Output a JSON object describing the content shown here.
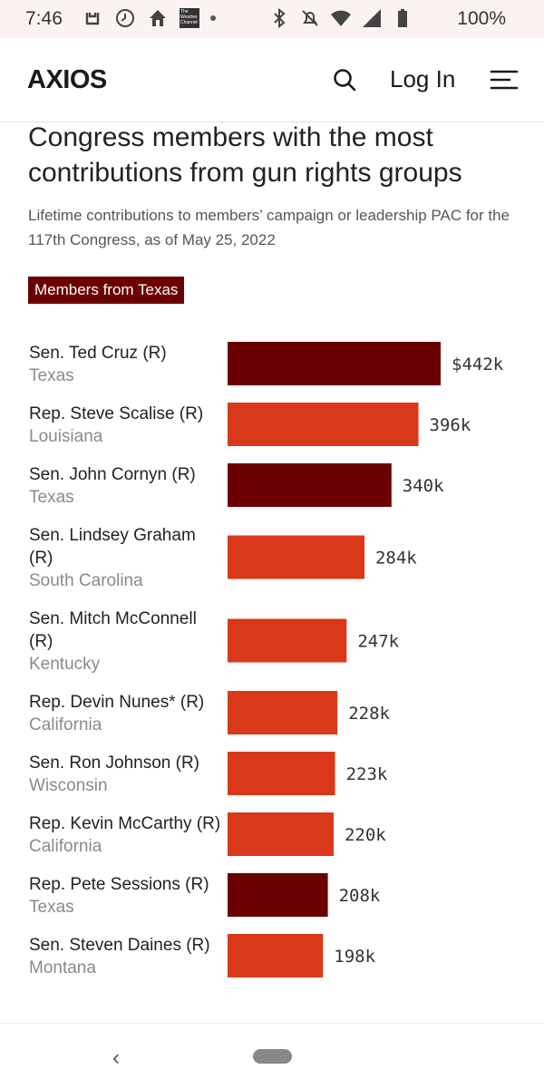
{
  "status_bar": {
    "time": "7:46",
    "battery": "100%",
    "icons_left": [
      "notification-icon",
      "clock-icon",
      "home-icon",
      "weather-channel-icon",
      "dot-icon"
    ],
    "icons_right": [
      "bluetooth-icon",
      "mute-icon",
      "wifi-icon",
      "signal-icon",
      "battery-icon"
    ],
    "twc_label": "The Weather Channel"
  },
  "header": {
    "logo": "AXIOS",
    "login_label": "Log In"
  },
  "colors": {
    "texas": "#6b0000",
    "other": "#d9391a"
  },
  "chart_data": {
    "type": "bar",
    "orientation": "horizontal",
    "title": "Congress members with the most contributions from gun rights groups",
    "subtitle": "Lifetime contributions to members’ campaign or leadership PAC for the 117th Congress, as of May 25, 2022",
    "legend": "Members from Texas",
    "unit": "thousands of dollars",
    "xlim": [
      0,
      442
    ],
    "items": [
      {
        "name": "Sen. Ted Cruz (R)",
        "state": "Texas",
        "value": 442,
        "label": "$442k",
        "texas": true
      },
      {
        "name": "Rep. Steve Scalise (R)",
        "state": "Louisiana",
        "value": 396,
        "label": "396k",
        "texas": false
      },
      {
        "name": "Sen. John Cornyn (R)",
        "state": "Texas",
        "value": 340,
        "label": "340k",
        "texas": true
      },
      {
        "name": "Sen. Lindsey Graham (R)",
        "state": "South Carolina",
        "value": 284,
        "label": "284k",
        "texas": false
      },
      {
        "name": "Sen. Mitch McConnell (R)",
        "state": "Kentucky",
        "value": 247,
        "label": "247k",
        "texas": false
      },
      {
        "name": "Rep. Devin Nunes* (R)",
        "state": "California",
        "value": 228,
        "label": "228k",
        "texas": false
      },
      {
        "name": "Sen. Ron Johnson (R)",
        "state": "Wisconsin",
        "value": 223,
        "label": "223k",
        "texas": false
      },
      {
        "name": "Rep. Kevin McCarthy (R)",
        "state": "California",
        "value": 220,
        "label": "220k",
        "texas": false
      },
      {
        "name": "Rep. Pete Sessions (R)",
        "state": "Texas",
        "value": 208,
        "label": "208k",
        "texas": true
      },
      {
        "name": "Sen. Steven Daines (R)",
        "state": "Montana",
        "value": 198,
        "label": "198k",
        "texas": false
      }
    ]
  }
}
